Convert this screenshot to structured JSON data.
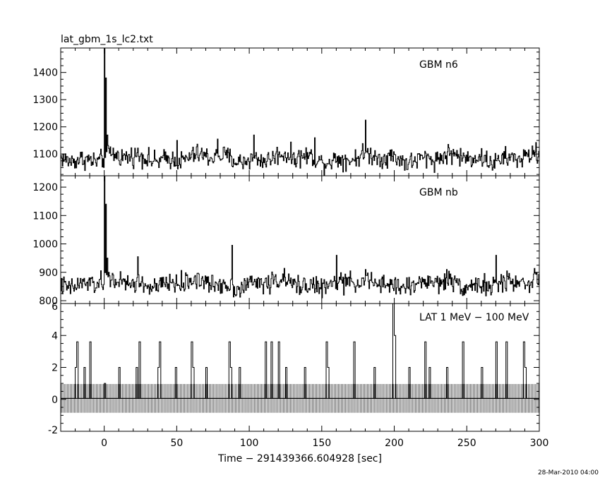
{
  "chart_data": {
    "type": "line",
    "title": "lat_gbm_1s_lc2.txt",
    "xlabel": "Time − 291439366.604928 [sec]",
    "timestamp": "28-Mar-2010 04:00",
    "xlim": [
      -30,
      300
    ],
    "x_ticks": [
      0,
      50,
      100,
      150,
      200,
      250,
      300
    ],
    "panels": [
      {
        "label": "GBM n6",
        "ylim": [
          1020,
          1490
        ],
        "y_ticks": [
          1100,
          1200,
          1300,
          1400
        ],
        "baseline": 1085,
        "noise": 28,
        "spikes": [
          [
            0,
            1490
          ],
          [
            1,
            1380
          ],
          [
            2,
            1170
          ],
          [
            3,
            1120
          ],
          [
            180,
            1225
          ],
          [
            145,
            1160
          ],
          [
            103,
            1170
          ],
          [
            78,
            1155
          ],
          [
            50,
            1150
          ]
        ]
      },
      {
        "label": "GBM nb",
        "ylim": [
          790,
          1240
        ],
        "y_ticks": [
          800,
          900,
          1000,
          1100,
          1200
        ],
        "baseline": 860,
        "noise": 27,
        "spikes": [
          [
            0,
            1240
          ],
          [
            1,
            1140
          ],
          [
            2,
            950
          ],
          [
            3,
            900
          ],
          [
            88,
            995
          ],
          [
            23,
            955
          ],
          [
            160,
            960
          ],
          [
            270,
            960
          ]
        ]
      },
      {
        "label": "LAT 1 MeV − 100 MeV",
        "ylim": [
          -2,
          6
        ],
        "y_ticks": [
          -2,
          0,
          2,
          4,
          6
        ],
        "mean": 0.06,
        "error": 0.9,
        "counts": [
          [
            -20,
            2
          ],
          [
            -19,
            3.6
          ],
          [
            -14,
            2
          ],
          [
            -10,
            3.6
          ],
          [
            0,
            1
          ],
          [
            10,
            2
          ],
          [
            22,
            2
          ],
          [
            24,
            3.6
          ],
          [
            37,
            2
          ],
          [
            38,
            3.6
          ],
          [
            49,
            2
          ],
          [
            60,
            3.6
          ],
          [
            61,
            2
          ],
          [
            70,
            2
          ],
          [
            86,
            3.6
          ],
          [
            87,
            2
          ],
          [
            93,
            2
          ],
          [
            111,
            3.6
          ],
          [
            115,
            3.6
          ],
          [
            120,
            3.6
          ],
          [
            125,
            2
          ],
          [
            138,
            2
          ],
          [
            153,
            3.6
          ],
          [
            154,
            2
          ],
          [
            172,
            3.6
          ],
          [
            186,
            2
          ],
          [
            199,
            6
          ],
          [
            200,
            4
          ],
          [
            210,
            2
          ],
          [
            221,
            3.6
          ],
          [
            224,
            2
          ],
          [
            236,
            2
          ],
          [
            247,
            3.6
          ],
          [
            260,
            2
          ],
          [
            270,
            3.6
          ],
          [
            277,
            3.6
          ],
          [
            289,
            3.6
          ],
          [
            290,
            2
          ]
        ]
      }
    ]
  }
}
